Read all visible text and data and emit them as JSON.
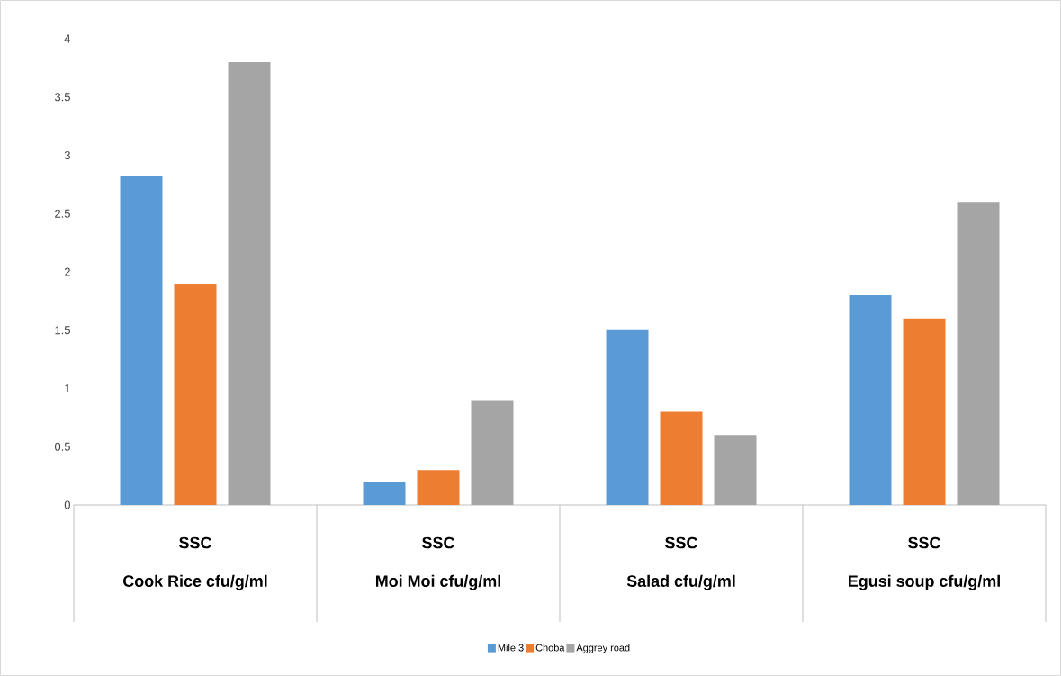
{
  "chart_data": {
    "type": "bar",
    "categories": [
      "Cook Rice cfu/g/ml",
      "Moi Moi cfu/g/ml",
      "Salad cfu/g/ml",
      "Egusi soup cfu/g/ml"
    ],
    "annotations": [
      "SSC",
      "SSC",
      "SSC",
      "SSC"
    ],
    "series": [
      {
        "name": "Mile 3",
        "color": "#5b9bd5",
        "values": [
          2.82,
          0.2,
          1.5,
          1.8
        ]
      },
      {
        "name": "Choba",
        "color": "#ed7d31",
        "values": [
          1.9,
          0.3,
          0.8,
          1.6
        ]
      },
      {
        "name": "Aggrey road",
        "color": "#a5a5a5",
        "values": [
          3.8,
          0.9,
          0.6,
          2.6
        ]
      }
    ],
    "ylim": [
      0,
      4
    ],
    "yticks": [
      0,
      0.5,
      1,
      1.5,
      2,
      2.5,
      3,
      3.5,
      4
    ],
    "grid": false,
    "legend": "bottom"
  }
}
